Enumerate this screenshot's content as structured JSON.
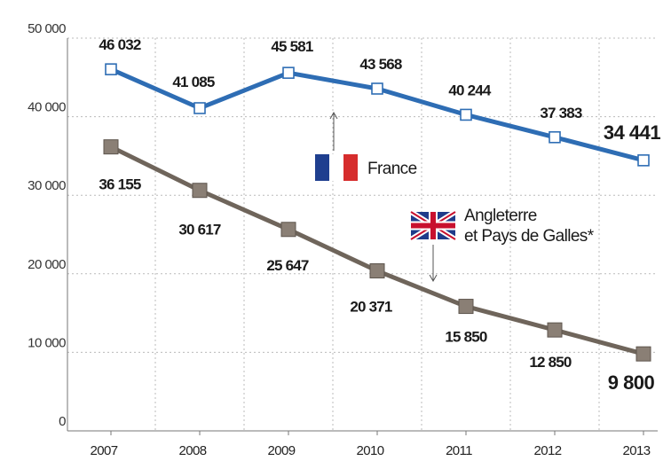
{
  "chart_data": {
    "type": "line",
    "categories": [
      "2007",
      "2008",
      "2009",
      "2010",
      "2011",
      "2012",
      "2013"
    ],
    "ylim": [
      0,
      50000
    ],
    "yticks": [
      0,
      10000,
      20000,
      30000,
      40000,
      50000
    ],
    "ytick_labels": [
      "0",
      "10 000",
      "20 000",
      "30 000",
      "40 000",
      "50 000"
    ],
    "grid": true,
    "series": [
      {
        "name": "France",
        "color": "#2e6db4",
        "marker": "hollow-square",
        "values": [
          46032,
          41085,
          45581,
          43568,
          40244,
          37383,
          34441
        ],
        "labels": [
          "46 032",
          "41 085",
          "45 581",
          "43 568",
          "40 244",
          "37 383",
          "34 441"
        ]
      },
      {
        "name": "Angleterre et Pays de Galles*",
        "name_lines": [
          "Angleterre",
          "et Pays de Galles*"
        ],
        "color": "#6f655b",
        "marker": "filled-square",
        "values": [
          36155,
          30617,
          25647,
          20371,
          15850,
          12850,
          9800
        ],
        "labels": [
          "36 155",
          "30 617",
          "25 647",
          "20 371",
          "15 850",
          "12 850",
          "9 800"
        ]
      }
    ],
    "legend": {
      "france_flag": "france-flag-icon",
      "uk_flag": "uk-flag-icon"
    }
  }
}
